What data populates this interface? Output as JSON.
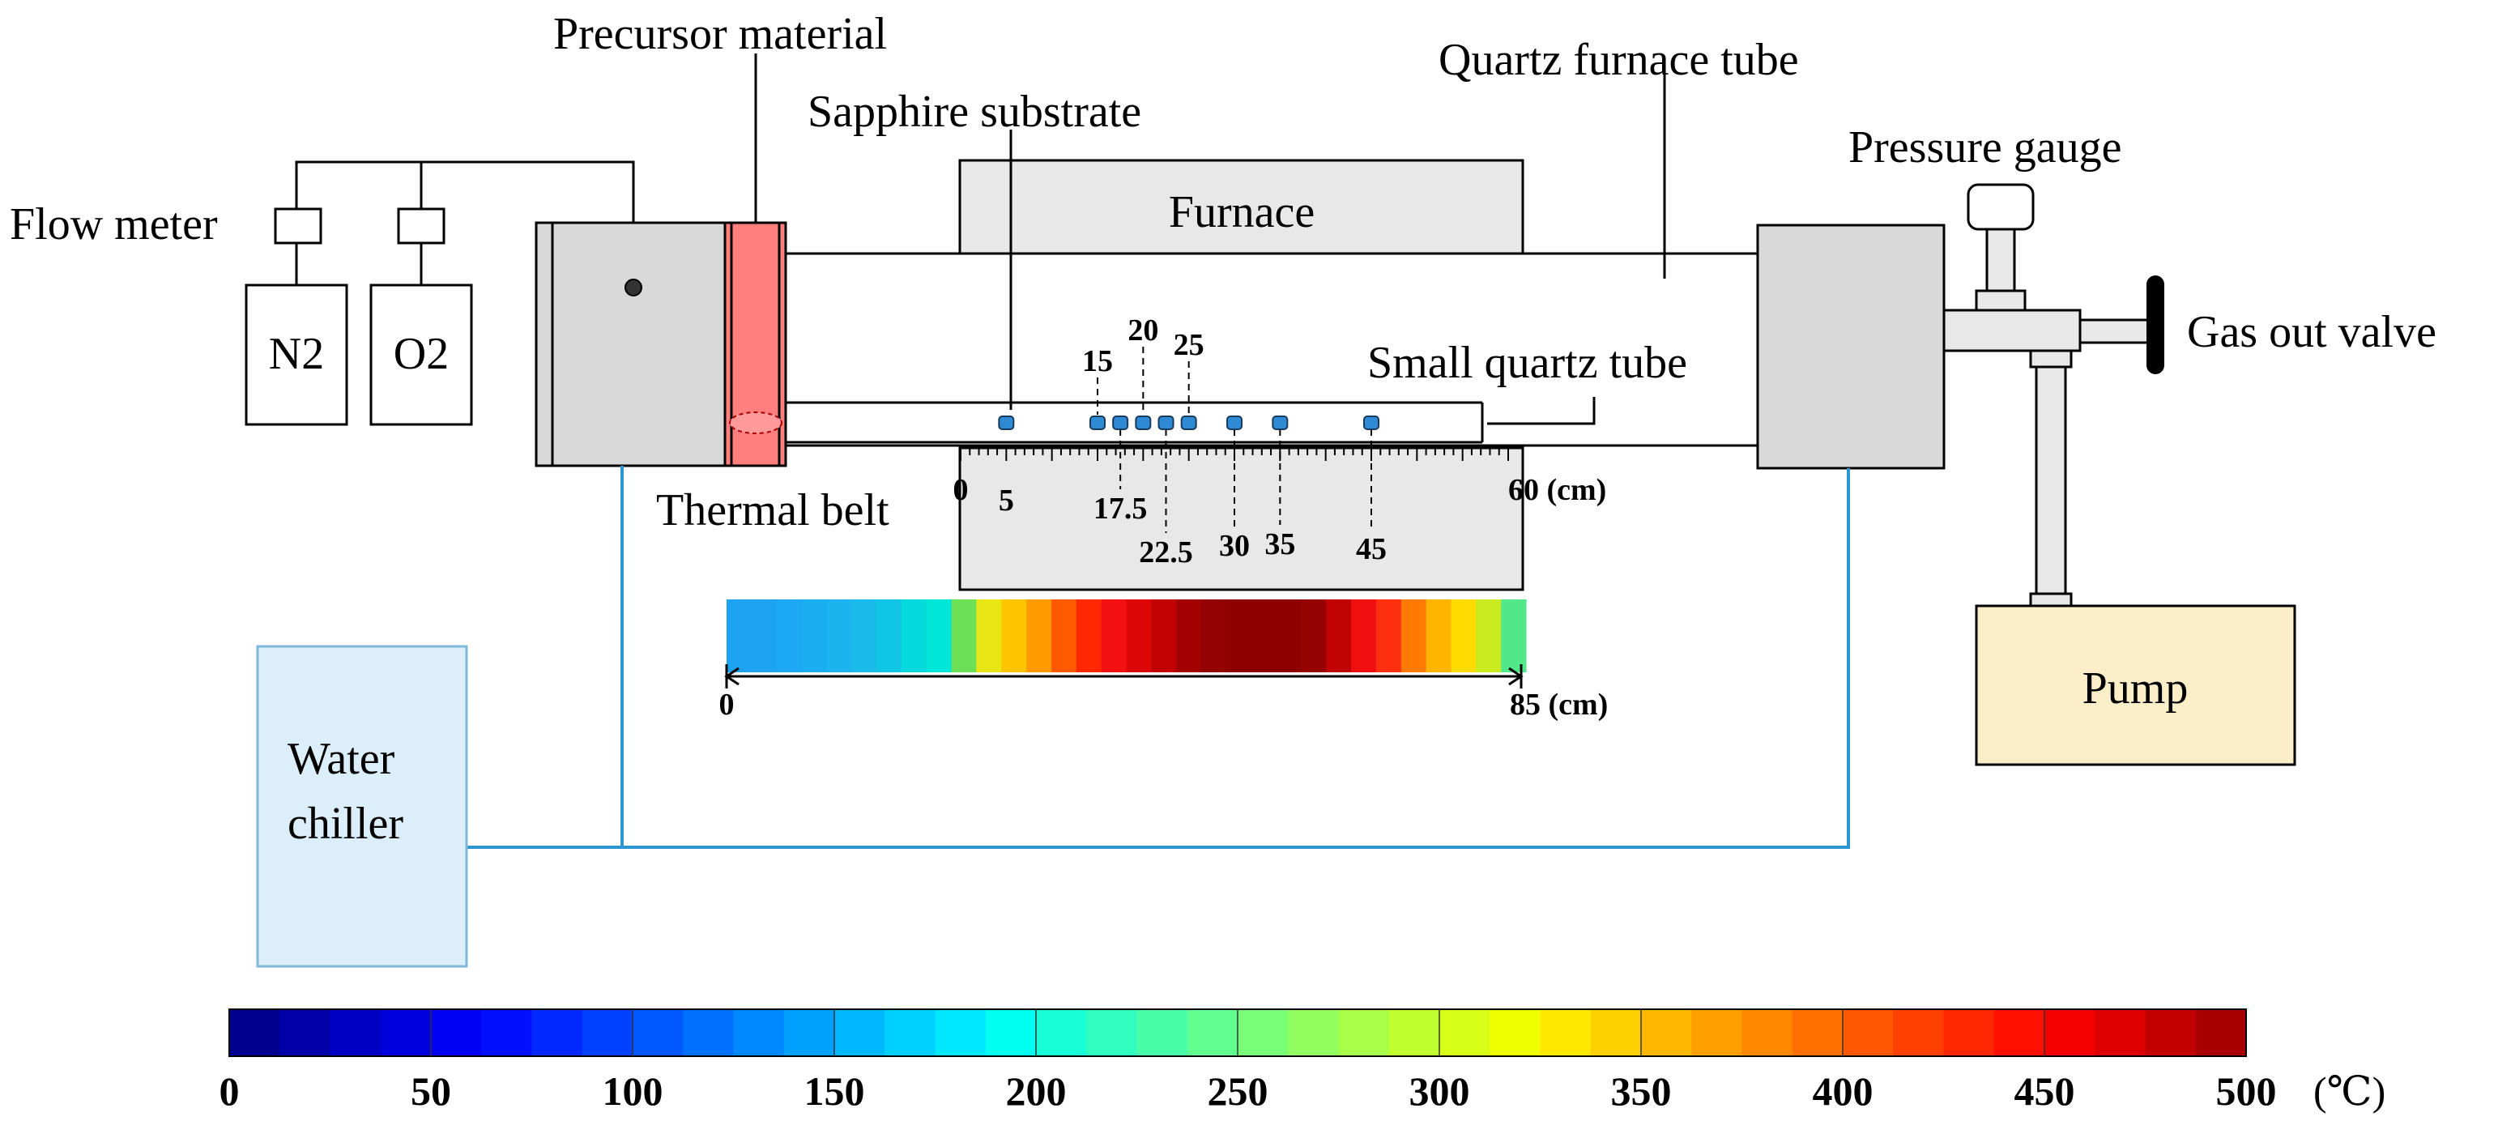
{
  "labels": {
    "precursor_material": "Precursor material",
    "quartz_furnace_tube": "Quartz furnace tube",
    "sapphire_substrate": "Sapphire substrate",
    "pressure_gauge": "Pressure gauge",
    "flow_meter": "Flow meter",
    "furnace": "Furnace",
    "gas_out_valve": "Gas out valve",
    "small_quartz_tube": "Small quartz tube",
    "thermal_belt": "Thermal belt",
    "water_chiller_line1": "Water",
    "water_chiller_line2": "chiller",
    "pump": "Pump",
    "gas_n2": "N2",
    "gas_o2": "O2"
  },
  "ruler": {
    "start": "0",
    "end": "60 (cm)",
    "positions": [
      "5",
      "15",
      "17.5",
      "20",
      "22.5",
      "25",
      "30",
      "35",
      "45"
    ]
  },
  "profile_bar": {
    "start": "0",
    "end": "85 (cm)",
    "colors": [
      "#1ea3f0",
      "#1ea3f0",
      "#1ca8f2",
      "#1aaef0",
      "#1cb3ee",
      "#18bbe9",
      "#10c6e4",
      "#06d9dc",
      "#00e6d8",
      "#6de058",
      "#e9e616",
      "#ffc400",
      "#ff9b00",
      "#ff5a00",
      "#ff2800",
      "#f21010",
      "#dd0707",
      "#c30303",
      "#a30202",
      "#940101",
      "#8e0000",
      "#8e0000",
      "#8e0000",
      "#960101",
      "#c00303",
      "#f01010",
      "#ff3010",
      "#ff7a00",
      "#ffb400",
      "#ffdb00",
      "#c8ea1e",
      "#50e888"
    ]
  },
  "colorbar": {
    "ticks": [
      "0",
      "50",
      "100",
      "150",
      "200",
      "250",
      "300",
      "350",
      "400",
      "450",
      "500"
    ],
    "unit": "(℃)",
    "colors": [
      "#00008f",
      "#0000a8",
      "#0000c2",
      "#0000dc",
      "#0000f5",
      "#0010ff",
      "#0028ff",
      "#0040ff",
      "#0058ff",
      "#0070ff",
      "#0088ff",
      "#00a0ff",
      "#00b8ff",
      "#00d0ff",
      "#00e8ff",
      "#00ffef",
      "#18ffd7",
      "#30ffbf",
      "#48ffa7",
      "#60ff8f",
      "#78ff77",
      "#90ff5f",
      "#a8ff47",
      "#c0ff2f",
      "#d8ff17",
      "#f0ff00",
      "#ffe800",
      "#ffd000",
      "#ffb800",
      "#ffa000",
      "#ff8800",
      "#ff7000",
      "#ff5800",
      "#ff4000",
      "#ff2800",
      "#ff1000",
      "#f50000",
      "#dc0000",
      "#c20000",
      "#a80000"
    ]
  }
}
